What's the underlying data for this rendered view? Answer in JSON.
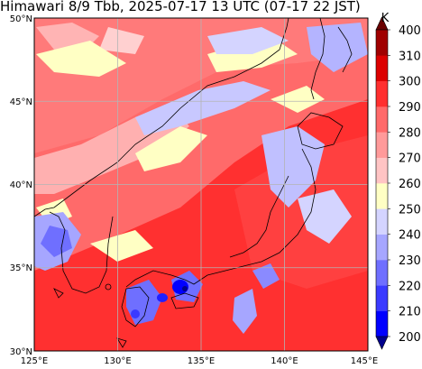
{
  "title": "Himawari 8/9 Tbb, 2025-07-17 13 UTC (07-17 22 JST)",
  "map": {
    "lon_range": [
      125,
      145
    ],
    "lat_range": [
      30,
      50
    ],
    "lon_ticks": [
      "125°E",
      "130°E",
      "135°E",
      "140°E",
      "145°E"
    ],
    "lat_ticks": [
      "30°N",
      "35°N",
      "40°N",
      "45°N",
      "50°N"
    ],
    "grid": true
  },
  "colorbar": {
    "unit": "K",
    "levels": [
      "200",
      "210",
      "220",
      "230",
      "240",
      "250",
      "260",
      "270",
      "280",
      "290",
      "300",
      "310",
      "400"
    ],
    "colors": [
      "#00008c",
      "#0000ff",
      "#3a3aff",
      "#6f6fff",
      "#a6a6ff",
      "#d4d4ff",
      "#ffffc4",
      "#ffc4c4",
      "#ff9a9a",
      "#ff6a6a",
      "#ff2f2f",
      "#dc0000",
      "#a00000",
      "#6a0000"
    ],
    "extend": "both"
  }
}
